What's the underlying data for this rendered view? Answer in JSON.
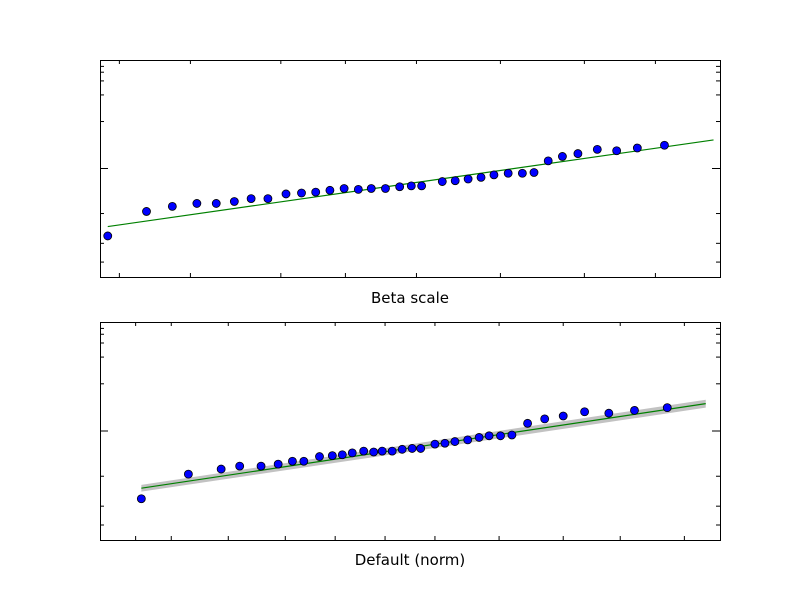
{
  "chart_data": [
    {
      "type": "scatter",
      "xlabel": "Beta scale",
      "ylabel": "",
      "scale": "log-y probability plot",
      "colors": {
        "points": "#0000ff",
        "point_edge": "#000000",
        "fit": "#008000"
      },
      "points": [
        [
          0.006,
          0.65
        ],
        [
          0.036,
          0.76
        ],
        [
          0.056,
          0.785
        ],
        [
          0.075,
          0.8
        ],
        [
          0.09,
          0.8
        ],
        [
          0.104,
          0.81
        ],
        [
          0.117,
          0.825
        ],
        [
          0.13,
          0.825
        ],
        [
          0.144,
          0.85
        ],
        [
          0.156,
          0.855
        ],
        [
          0.167,
          0.86
        ],
        [
          0.178,
          0.87
        ],
        [
          0.189,
          0.88
        ],
        [
          0.2,
          0.875
        ],
        [
          0.21,
          0.88
        ],
        [
          0.221,
          0.88
        ],
        [
          0.232,
          0.89
        ],
        [
          0.241,
          0.895
        ],
        [
          0.249,
          0.895
        ],
        [
          0.265,
          0.92
        ],
        [
          0.275,
          0.925
        ],
        [
          0.285,
          0.935
        ],
        [
          0.295,
          0.945
        ],
        [
          0.305,
          0.96
        ],
        [
          0.316,
          0.97
        ],
        [
          0.327,
          0.97
        ],
        [
          0.336,
          0.975
        ],
        [
          0.347,
          1.05
        ],
        [
          0.358,
          1.08
        ],
        [
          0.37,
          1.1
        ],
        [
          0.385,
          1.13
        ],
        [
          0.4,
          1.12
        ],
        [
          0.416,
          1.14
        ],
        [
          0.437,
          1.16
        ]
      ],
      "fit_line": {
        "x": [
          0.006,
          0.475
        ],
        "y": [
          0.69,
          1.2
        ]
      }
    },
    {
      "type": "scatter",
      "xlabel": "Default (norm)",
      "ylabel": "",
      "scale": "log-y probability plot",
      "colors": {
        "points": "#0000ff",
        "point_edge": "#000000",
        "fit": "#008000",
        "band": "#999999"
      },
      "points": [
        [
          -1.96,
          0.65
        ],
        [
          -1.63,
          0.76
        ],
        [
          -1.4,
          0.785
        ],
        [
          -1.27,
          0.8
        ],
        [
          -1.12,
          0.8
        ],
        [
          -1.0,
          0.81
        ],
        [
          -0.9,
          0.825
        ],
        [
          -0.82,
          0.825
        ],
        [
          -0.71,
          0.85
        ],
        [
          -0.62,
          0.855
        ],
        [
          -0.55,
          0.86
        ],
        [
          -0.48,
          0.87
        ],
        [
          -0.4,
          0.88
        ],
        [
          -0.33,
          0.875
        ],
        [
          -0.27,
          0.88
        ],
        [
          -0.2,
          0.88
        ],
        [
          -0.13,
          0.89
        ],
        [
          -0.06,
          0.895
        ],
        [
          0.0,
          0.895
        ],
        [
          0.1,
          0.92
        ],
        [
          0.17,
          0.925
        ],
        [
          0.24,
          0.935
        ],
        [
          0.33,
          0.945
        ],
        [
          0.41,
          0.96
        ],
        [
          0.48,
          0.97
        ],
        [
          0.56,
          0.97
        ],
        [
          0.64,
          0.975
        ],
        [
          0.75,
          1.05
        ],
        [
          0.87,
          1.08
        ],
        [
          1.0,
          1.1
        ],
        [
          1.15,
          1.13
        ],
        [
          1.32,
          1.12
        ],
        [
          1.5,
          1.14
        ],
        [
          1.73,
          1.16
        ]
      ],
      "fit_line": {
        "x": [
          -1.96,
          2.0
        ],
        "y": [
          0.695,
          1.19
        ]
      },
      "confidence_band": {
        "x": [
          -1.96,
          2.0
        ],
        "y_low": [
          0.68,
          1.16
        ],
        "y_high": [
          0.71,
          1.22
        ]
      }
    }
  ]
}
